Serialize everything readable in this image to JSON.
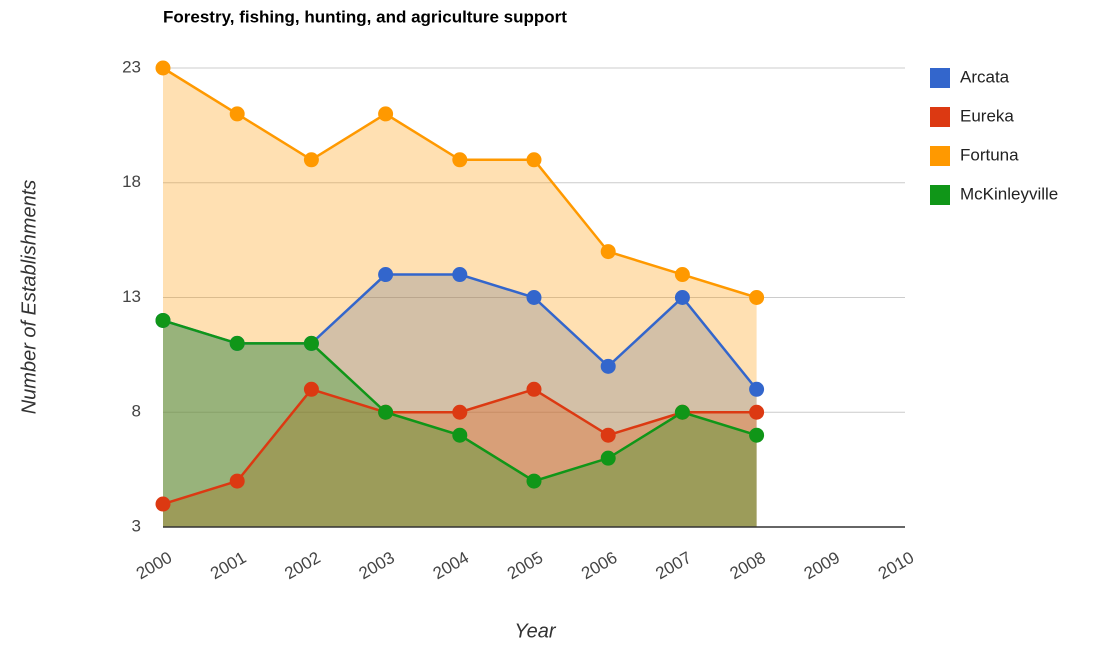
{
  "chart_data": {
    "type": "area",
    "title": "Forestry, fishing, hunting, and agriculture support",
    "x_label": "Year",
    "y_label": "Number of Establishments",
    "x": [
      2000,
      2001,
      2002,
      2003,
      2004,
      2005,
      2006,
      2007,
      2008
    ],
    "series": [
      {
        "name": "Arcata",
        "color": "#3366cc",
        "values": [
          12,
          11,
          11,
          14,
          14,
          13,
          10,
          13,
          9
        ]
      },
      {
        "name": "Eureka",
        "color": "#dc3912",
        "values": [
          4,
          5,
          9,
          8,
          8,
          9,
          7,
          8,
          8
        ]
      },
      {
        "name": "Fortuna",
        "color": "#ff9900",
        "values": [
          23,
          21,
          19,
          21,
          19,
          19,
          15,
          14,
          13
        ]
      },
      {
        "name": "McKinleyville",
        "color": "#109618",
        "values": [
          12,
          11,
          11,
          8,
          7,
          5,
          6,
          8,
          7
        ]
      }
    ],
    "xlim": [
      2000,
      2010
    ],
    "xticks": [
      2000,
      2001,
      2002,
      2003,
      2004,
      2005,
      2006,
      2007,
      2008,
      2009,
      2010
    ],
    "ylim": [
      3,
      23
    ],
    "yticks": [
      3,
      8,
      13,
      18,
      23
    ],
    "grid": true,
    "legend": "right"
  }
}
